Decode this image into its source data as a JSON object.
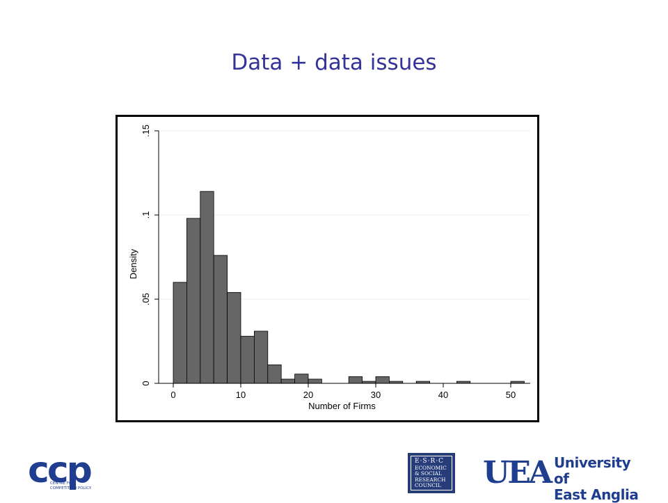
{
  "slide": {
    "title": "Data + data issues"
  },
  "chart_data": {
    "type": "bar",
    "title": "",
    "xlabel": "Number of Firms",
    "ylabel": "Density",
    "xlim": [
      -2,
      53
    ],
    "ylim": [
      0,
      0.15
    ],
    "bin_width": 2,
    "x_ticks": [
      0,
      10,
      20,
      30,
      40,
      50
    ],
    "x_tick_labels": [
      "0",
      "10",
      "20",
      "30",
      "40",
      "50"
    ],
    "y_ticks": [
      0,
      0.05,
      0.1,
      0.15
    ],
    "y_tick_labels": [
      "0",
      ".05",
      ".1",
      ".15"
    ],
    "grid": true,
    "bins": [
      {
        "start": 0,
        "value": 0.06
      },
      {
        "start": 2,
        "value": 0.098
      },
      {
        "start": 4,
        "value": 0.114
      },
      {
        "start": 6,
        "value": 0.076
      },
      {
        "start": 8,
        "value": 0.054
      },
      {
        "start": 10,
        "value": 0.028
      },
      {
        "start": 12,
        "value": 0.031
      },
      {
        "start": 14,
        "value": 0.011
      },
      {
        "start": 16,
        "value": 0.0025
      },
      {
        "start": 18,
        "value": 0.0055
      },
      {
        "start": 20,
        "value": 0.0025
      },
      {
        "start": 26,
        "value": 0.004
      },
      {
        "start": 28,
        "value": 0.0012
      },
      {
        "start": 30,
        "value": 0.004
      },
      {
        "start": 32,
        "value": 0.0012
      },
      {
        "start": 36,
        "value": 0.0012
      },
      {
        "start": 42,
        "value": 0.0012
      },
      {
        "start": 50,
        "value": 0.0012
      }
    ],
    "colors": {
      "bar_fill": "#666666",
      "bar_stroke": "#000000",
      "grid": "#eeeeee"
    }
  },
  "logos": {
    "ccp": {
      "letters": "ccp",
      "subtitle_lines": [
        "CENTRE FOR",
        "COMPETITION POLICY"
      ]
    },
    "esrc": {
      "lines": [
        "E·S·R·C",
        "ECONOMIC",
        "& SOCIAL",
        "RESEARCH",
        "COUNCIL"
      ]
    },
    "uea": {
      "mark": "UEA",
      "name_lines": [
        "University of",
        "East Anglia"
      ]
    }
  }
}
